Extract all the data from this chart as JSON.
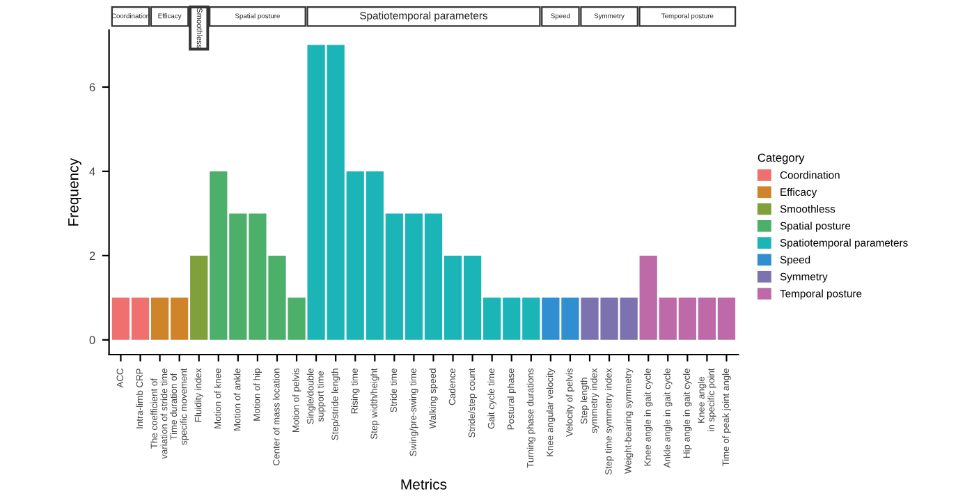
{
  "chart_data": {
    "type": "bar",
    "xlabel": "Metrics",
    "ylabel": "Frequency",
    "legend": "right",
    "legend_title": "Category",
    "ylim": [
      -0.35,
      7.35
    ],
    "yticks": [
      0,
      2,
      4,
      6
    ],
    "annotations": [
      "Coordination",
      "Efficacy",
      "Smoothless",
      "Spatial posture",
      "Spatiotemporal parameters",
      "Speed",
      "Symmetry",
      "Temporal posture"
    ],
    "categories": [
      "ACC",
      "Intra-limb CRP",
      "The coefficient of\nvariation of stride time",
      "Time duration of\nspecific movement",
      "Fluidity index",
      "Motion of knee",
      "Motion of ankle",
      "Motion of hip",
      "Center of mass location",
      "Motion of pelvis",
      "Single/double\nsupport time",
      "Step/stride length",
      "Rising time",
      "Step width/height",
      "Stride time",
      "Swing/pre-swing time",
      "Walking speed",
      "Cadence",
      "Stride/step count",
      "Gait cycle time",
      "Postural phase",
      "Turning phase durations",
      "Knee angular velocity",
      "Velocity of pelvis",
      "Step length\nsymmetry index",
      "Step time symmetry index",
      "Weight-bearing symmetry",
      "Knee angle in gait cycle",
      "Ankle angle in gait cycle",
      "Hip angle in gait cycle",
      "Knee angle\nin specific point",
      "Time of peak joint angle"
    ],
    "series": [
      {
        "name": "Coordination",
        "color": "#f07070",
        "values": [
          1,
          1,
          null,
          null,
          null,
          null,
          null,
          null,
          null,
          null,
          null,
          null,
          null,
          null,
          null,
          null,
          null,
          null,
          null,
          null,
          null,
          null,
          null,
          null,
          null,
          null,
          null,
          null,
          null,
          null,
          null,
          null
        ]
      },
      {
        "name": "Efficacy",
        "color": "#d0842a",
        "values": [
          null,
          null,
          1,
          1,
          null,
          null,
          null,
          null,
          null,
          null,
          null,
          null,
          null,
          null,
          null,
          null,
          null,
          null,
          null,
          null,
          null,
          null,
          null,
          null,
          null,
          null,
          null,
          null,
          null,
          null,
          null,
          null
        ]
      },
      {
        "name": "Smoothless",
        "color": "#7fa03a",
        "values": [
          null,
          null,
          null,
          null,
          2,
          null,
          null,
          null,
          null,
          null,
          null,
          null,
          null,
          null,
          null,
          null,
          null,
          null,
          null,
          null,
          null,
          null,
          null,
          null,
          null,
          null,
          null,
          null,
          null,
          null,
          null,
          null
        ]
      },
      {
        "name": "Spatial posture",
        "color": "#4caf6a",
        "values": [
          null,
          null,
          null,
          null,
          null,
          4,
          3,
          3,
          2,
          1,
          null,
          null,
          null,
          null,
          null,
          null,
          null,
          null,
          null,
          null,
          null,
          null,
          null,
          null,
          null,
          null,
          null,
          null,
          null,
          null,
          null,
          null
        ]
      },
      {
        "name": "Spatiotemporal parameters",
        "color": "#1bb5b8",
        "values": [
          null,
          null,
          null,
          null,
          null,
          null,
          null,
          null,
          null,
          null,
          7,
          7,
          4,
          4,
          3,
          3,
          3,
          2,
          2,
          1,
          1,
          1,
          null,
          null,
          null,
          null,
          null,
          null,
          null,
          null,
          null,
          null
        ]
      },
      {
        "name": "Speed",
        "color": "#2f8fd0",
        "values": [
          null,
          null,
          null,
          null,
          null,
          null,
          null,
          null,
          null,
          null,
          null,
          null,
          null,
          null,
          null,
          null,
          null,
          null,
          null,
          null,
          null,
          null,
          1,
          1,
          null,
          null,
          null,
          null,
          null,
          null,
          null,
          null
        ]
      },
      {
        "name": "Symmetry",
        "color": "#7c72b0",
        "values": [
          null,
          null,
          null,
          null,
          null,
          null,
          null,
          null,
          null,
          null,
          null,
          null,
          null,
          null,
          null,
          null,
          null,
          null,
          null,
          null,
          null,
          null,
          null,
          null,
          1,
          1,
          1,
          null,
          null,
          null,
          null,
          null
        ]
      },
      {
        "name": "Temporal posture",
        "color": "#be6aa8",
        "values": [
          null,
          null,
          null,
          null,
          null,
          null,
          null,
          null,
          null,
          null,
          null,
          null,
          null,
          null,
          null,
          null,
          null,
          null,
          null,
          null,
          null,
          null,
          null,
          null,
          null,
          null,
          null,
          2,
          1,
          1,
          1,
          1
        ]
      }
    ]
  }
}
